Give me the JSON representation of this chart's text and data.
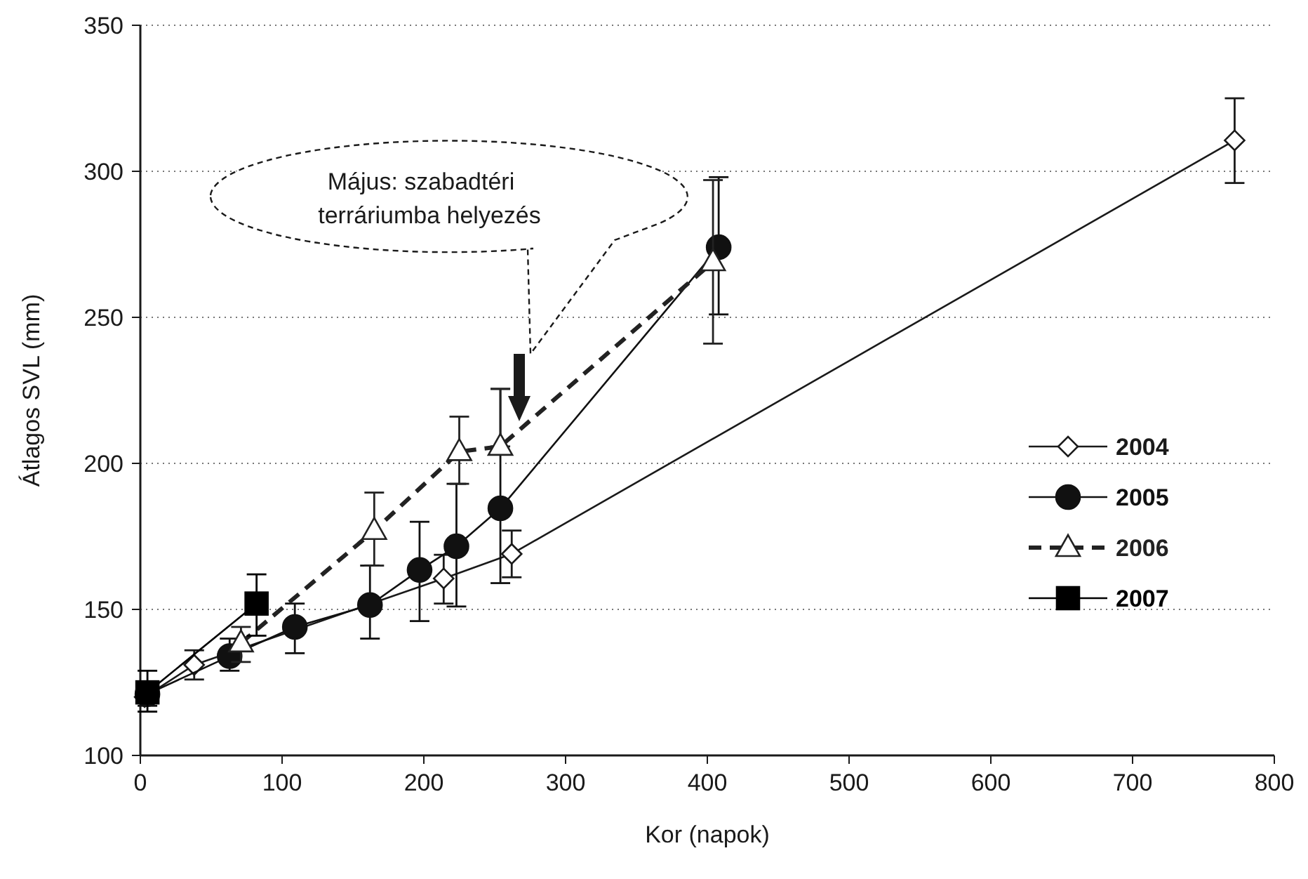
{
  "chart_data": {
    "type": "line",
    "xlabel": "Kor (napok)",
    "ylabel": "Átlagos SVL (mm)",
    "xlim": [
      0,
      800
    ],
    "ylim": [
      100,
      350
    ],
    "xticks": [
      0,
      100,
      200,
      300,
      400,
      500,
      600,
      700,
      800
    ],
    "yticks": [
      100,
      150,
      200,
      250,
      300,
      350
    ],
    "grid": "y",
    "legend": "right",
    "series": [
      {
        "name": "2004",
        "color": "#1a1a1a",
        "marker": "diamond",
        "line_style": "solid",
        "x": [
          3,
          38,
          214,
          262,
          772
        ],
        "values": [
          120,
          131,
          160.6,
          169,
          310.6
        ],
        "errors": [
          null,
          [
            126,
            136
          ],
          [
            152,
            168.7
          ],
          [
            161,
            177
          ],
          [
            296,
            325
          ]
        ]
      },
      {
        "name": "2005",
        "color": "#111111",
        "marker": "circle",
        "line_style": "solid",
        "x": [
          5,
          63,
          109,
          162,
          197,
          223,
          254,
          408
        ],
        "values": [
          121,
          134,
          144,
          151.5,
          163.5,
          171.6,
          184.6,
          274
        ],
        "errors": [
          [
            117,
            125
          ],
          [
            129,
            140
          ],
          [
            135,
            152
          ],
          [
            140,
            165
          ],
          [
            146,
            180
          ],
          [
            151,
            193
          ],
          [
            159,
            225.5
          ],
          [
            251,
            298
          ]
        ]
      },
      {
        "name": "2006",
        "color": "#222222",
        "marker": "triangle",
        "line_style": "dashed",
        "x": [
          71,
          165,
          225,
          254,
          404
        ],
        "values": [
          138.5,
          177,
          204,
          205.8,
          269
        ],
        "errors": [
          [
            132,
            144
          ],
          [
            165,
            190
          ],
          [
            193,
            216
          ],
          [
            205.8,
            225.5
          ],
          [
            241,
            297
          ]
        ]
      },
      {
        "name": "2007",
        "color": "#000000",
        "marker": "square",
        "line_style": "solid",
        "x": [
          5,
          82
        ],
        "values": [
          121.6,
          152
        ],
        "errors": [
          [
            115,
            129
          ],
          [
            141,
            162
          ]
        ]
      }
    ],
    "annotations": [
      "Május: szabadtéri terráriumba helyezés"
    ]
  }
}
